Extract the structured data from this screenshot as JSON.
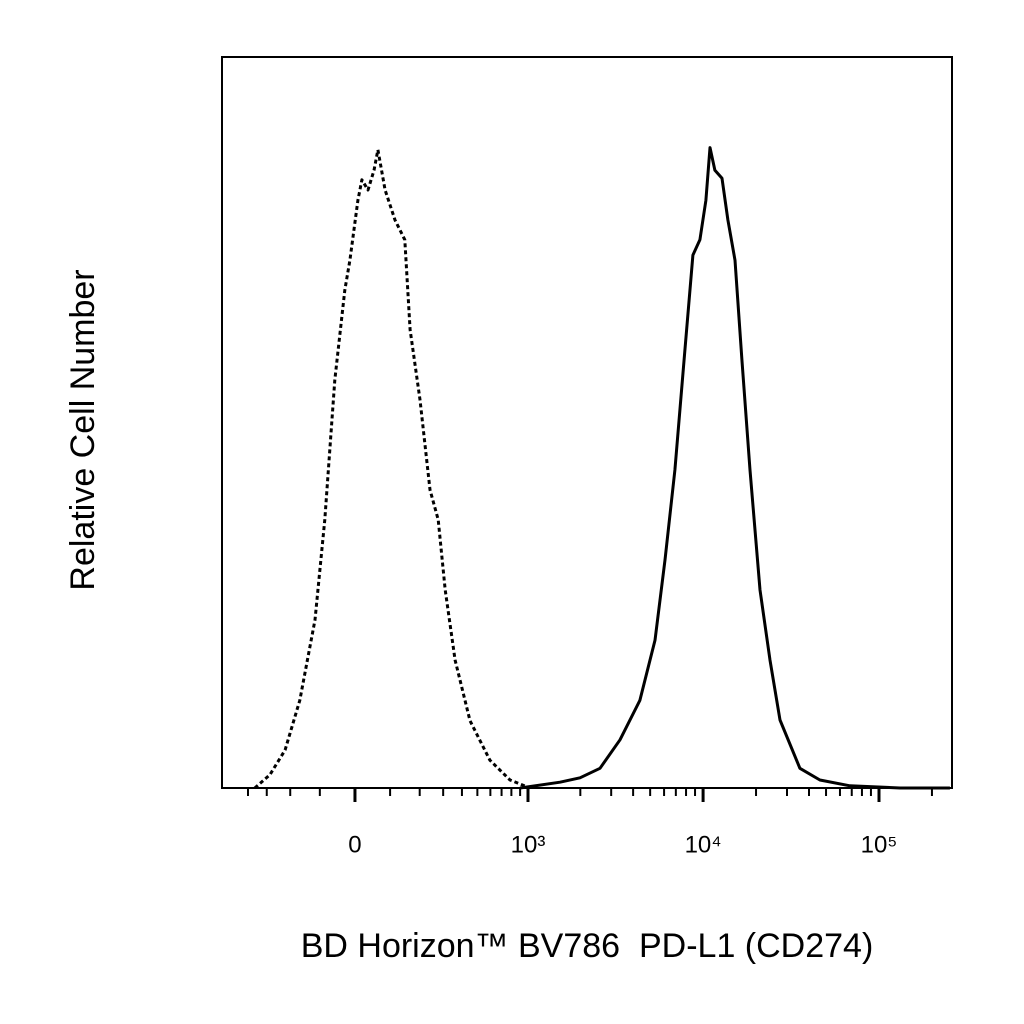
{
  "chart_data": {
    "type": "histogram-line",
    "xlabel": "BD Horizon™ BV786  PD-L1 (CD274)",
    "ylabel": "Relative Cell Number",
    "xscale": "biexponential",
    "xlim": [
      -580,
      260000
    ],
    "ylim": [
      0,
      100
    ],
    "xticks": [
      0,
      {
        "value": 1000,
        "label": "10³"
      },
      {
        "value": 10000,
        "label": "10⁴"
      },
      {
        "value": 100000,
        "label": "10⁵"
      }
    ],
    "xminorticks": [
      -400,
      -300,
      -200,
      -100,
      100,
      200,
      300,
      400,
      500,
      600,
      700,
      800,
      900,
      2000,
      3000,
      4000,
      5000,
      6000,
      7000,
      8000,
      9000,
      20000,
      30000,
      40000,
      50000,
      60000,
      70000,
      80000,
      90000,
      200000
    ],
    "series": [
      {
        "color": "#000000",
        "style": "dotted",
        "x": [
          -361,
          -285,
          -220,
          -165,
          -115,
          -85,
          -56,
          -28,
          -14,
          8,
          19,
          36,
          53,
          64,
          85,
          115,
          147,
          165,
          201,
          241,
          277,
          310,
          361,
          450,
          596,
          785,
          1027
        ],
        "values": [
          0,
          1.8,
          5.2,
          12,
          23,
          36.7,
          55.8,
          68.1,
          72.2,
          80.4,
          83.2,
          81.8,
          84.5,
          87.3,
          81.8,
          77.7,
          75,
          62.7,
          53.1,
          40.8,
          36.7,
          27.1,
          17.5,
          9.2,
          3.8,
          1.1,
          0
        ]
      },
      {
        "color": "#000000",
        "style": "solid",
        "x": [
          899,
          1529,
          1991,
          2589,
          3366,
          4374,
          5328,
          6073,
          6917,
          7886,
          8757,
          9597,
          10374,
          10941,
          11676,
          12810,
          13839,
          15183,
          16632,
          18480,
          21063,
          24003,
          27363,
          35532,
          46137,
          68355,
          131670,
          253050
        ],
        "values": [
          0,
          0.8,
          1.4,
          2.7,
          6.6,
          12,
          20.2,
          31.2,
          43.5,
          59.9,
          72.9,
          75,
          80.4,
          87.6,
          84.5,
          83.4,
          77.7,
          72.2,
          58.6,
          43.5,
          27.1,
          17.5,
          9.3,
          2.7,
          1.1,
          0.3,
          0,
          0
        ]
      }
    ]
  }
}
